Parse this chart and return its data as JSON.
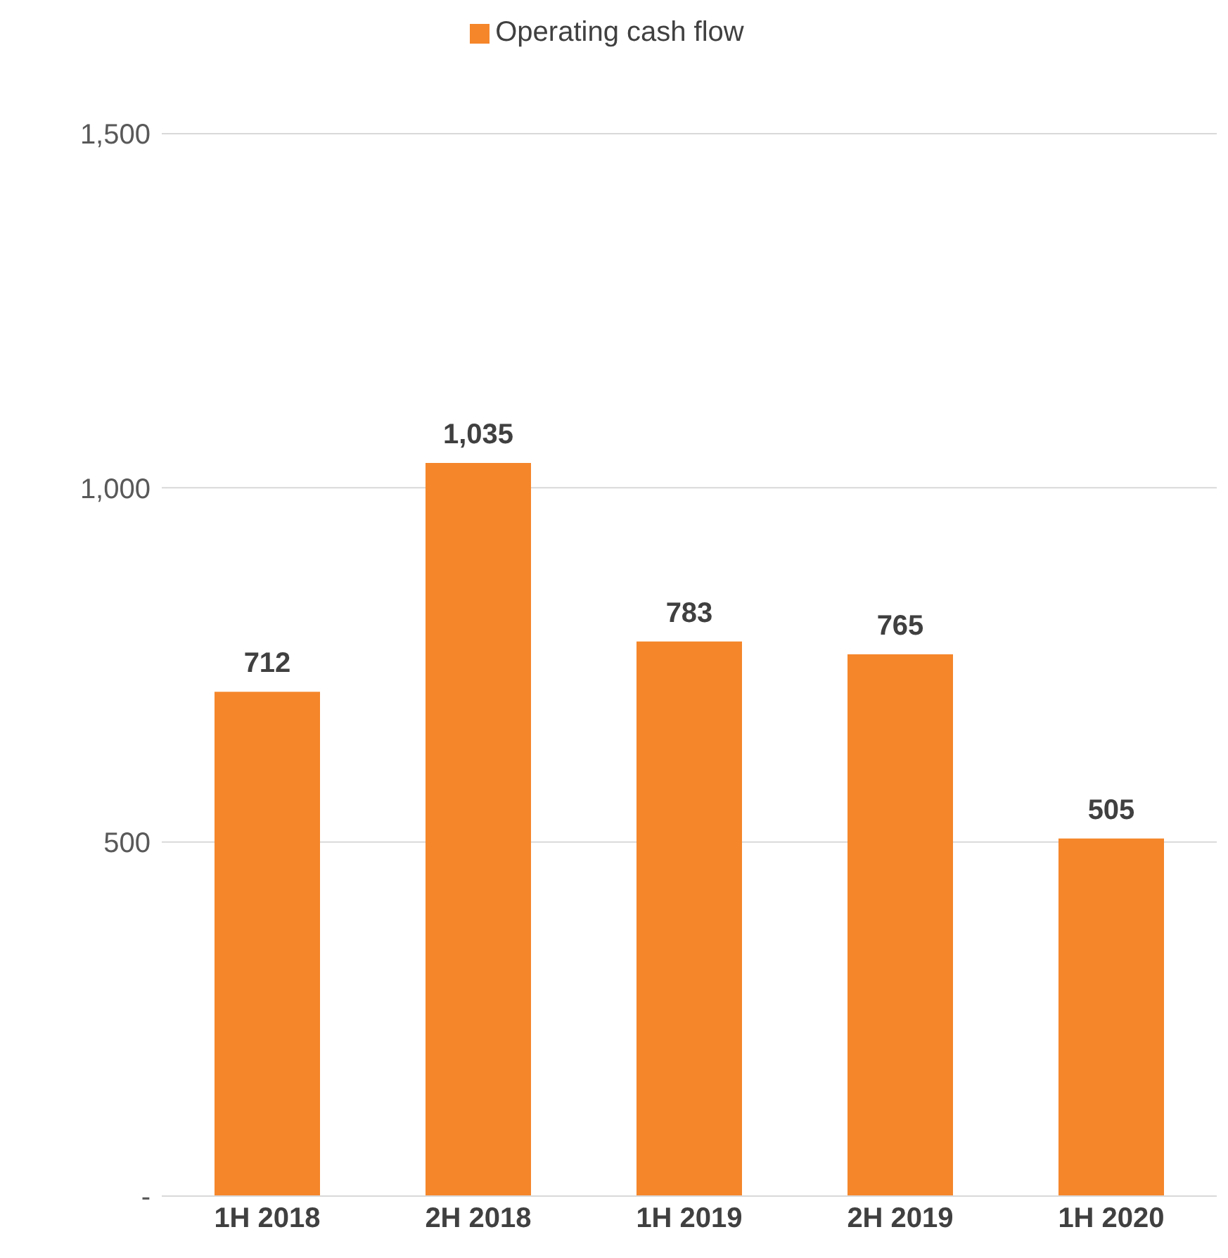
{
  "chart_data": {
    "type": "bar",
    "categories": [
      "1H 2018",
      "2H 2018",
      "1H 2019",
      "2H 2019",
      "1H 2020"
    ],
    "series": [
      {
        "name": "Operating cash flow",
        "color": "#f5862a",
        "values": [
          712,
          1035,
          783,
          765,
          505
        ],
        "value_labels": [
          "712",
          "1,035",
          "783",
          "765",
          "505"
        ]
      }
    ],
    "ylim": [
      0,
      1500
    ],
    "yticks": [
      {
        "value": 0,
        "label": "-"
      },
      500,
      {
        "value": 1000,
        "label": "1,000"
      },
      {
        "value": 1500,
        "label": "1,500"
      }
    ],
    "grid": "y",
    "legend": "top"
  }
}
